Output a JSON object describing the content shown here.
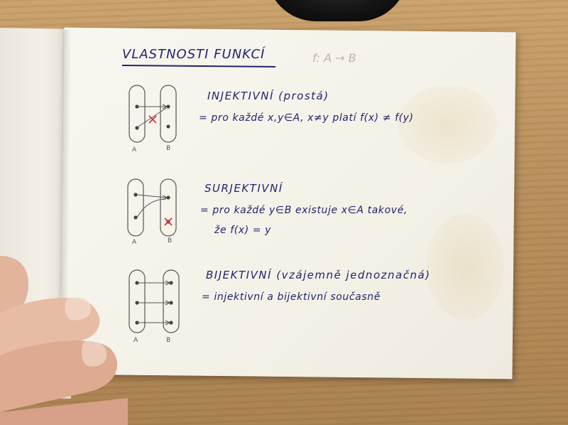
{
  "title": "VLASTNOSTI FUNKCÍ",
  "notation": "f: A → B",
  "sections": [
    {
      "heading": "INJEKTIVNÍ (prostá)",
      "lines": [
        "= pro každé x,y∈A, x≠y platí f(x) ≠ f(y)"
      ],
      "set_labels": [
        "A",
        "B"
      ]
    },
    {
      "heading": "SURJEKTIVNÍ",
      "lines": [
        "= pro každé y∈B existuje x∈A takové,",
        "že f(x) = y"
      ],
      "set_labels": [
        "A",
        "B"
      ]
    },
    {
      "heading": "BIJEKTIVNÍ (vzájemně jednoznačná)",
      "lines": [
        "= injektivní a bijektivní současně"
      ],
      "set_labels": [
        "A",
        "B"
      ]
    }
  ],
  "colors": {
    "ink": "#23236e",
    "cross": "#d0373f",
    "pencil": "#555555"
  }
}
